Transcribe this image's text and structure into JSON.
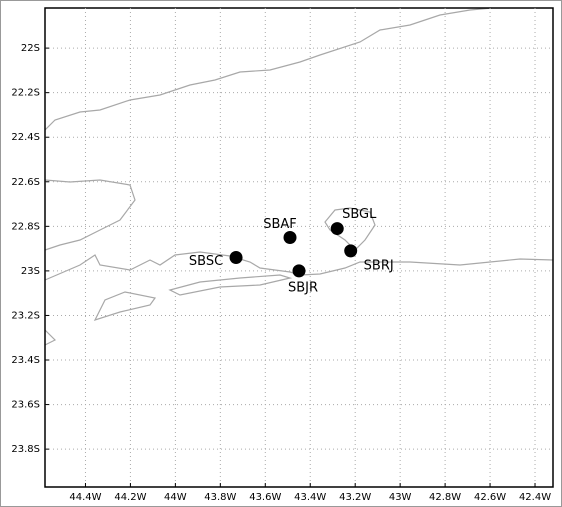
{
  "chart_data": {
    "type": "scatter",
    "labels": [
      "SBSC",
      "SBAF",
      "SBGL",
      "SBRJ",
      "SBJR"
    ],
    "x": [
      -43.73,
      -43.49,
      -43.28,
      -43.22,
      -43.45
    ],
    "values": [
      -22.94,
      -22.85,
      -22.81,
      -22.91,
      -23.0
    ],
    "color": "#000000",
    "xlim": [
      -44.58,
      -42.32
    ],
    "ylim": [
      -23.97,
      -21.82
    ],
    "xticks": [
      {
        "value": -44.4,
        "label": "44.4W"
      },
      {
        "value": -44.2,
        "label": "44.2W"
      },
      {
        "value": -44,
        "label": "44W"
      },
      {
        "value": -43.8,
        "label": "43.8W"
      },
      {
        "value": -43.6,
        "label": "43.6W"
      },
      {
        "value": -43.4,
        "label": "43.4W"
      },
      {
        "value": -43.2,
        "label": "43.2W"
      },
      {
        "value": -43,
        "label": "43W"
      },
      {
        "value": -42.8,
        "label": "42.8W"
      },
      {
        "value": -42.6,
        "label": "42.6W"
      },
      {
        "value": -42.4,
        "label": "42.4W"
      }
    ],
    "yticks": [
      {
        "value": -22,
        "label": "22S"
      },
      {
        "value": -22.2,
        "label": "22.2S"
      },
      {
        "value": -22.4,
        "label": "22.4S"
      },
      {
        "value": -22.6,
        "label": "22.6S"
      },
      {
        "value": -22.8,
        "label": "22.8S"
      },
      {
        "value": -23,
        "label": "23S"
      },
      {
        "value": -23.2,
        "label": "23.2S"
      },
      {
        "value": -23.4,
        "label": "23.4S"
      },
      {
        "value": -23.6,
        "label": "23.6S"
      },
      {
        "value": -23.8,
        "label": "23.8S"
      }
    ],
    "grid": true
  }
}
